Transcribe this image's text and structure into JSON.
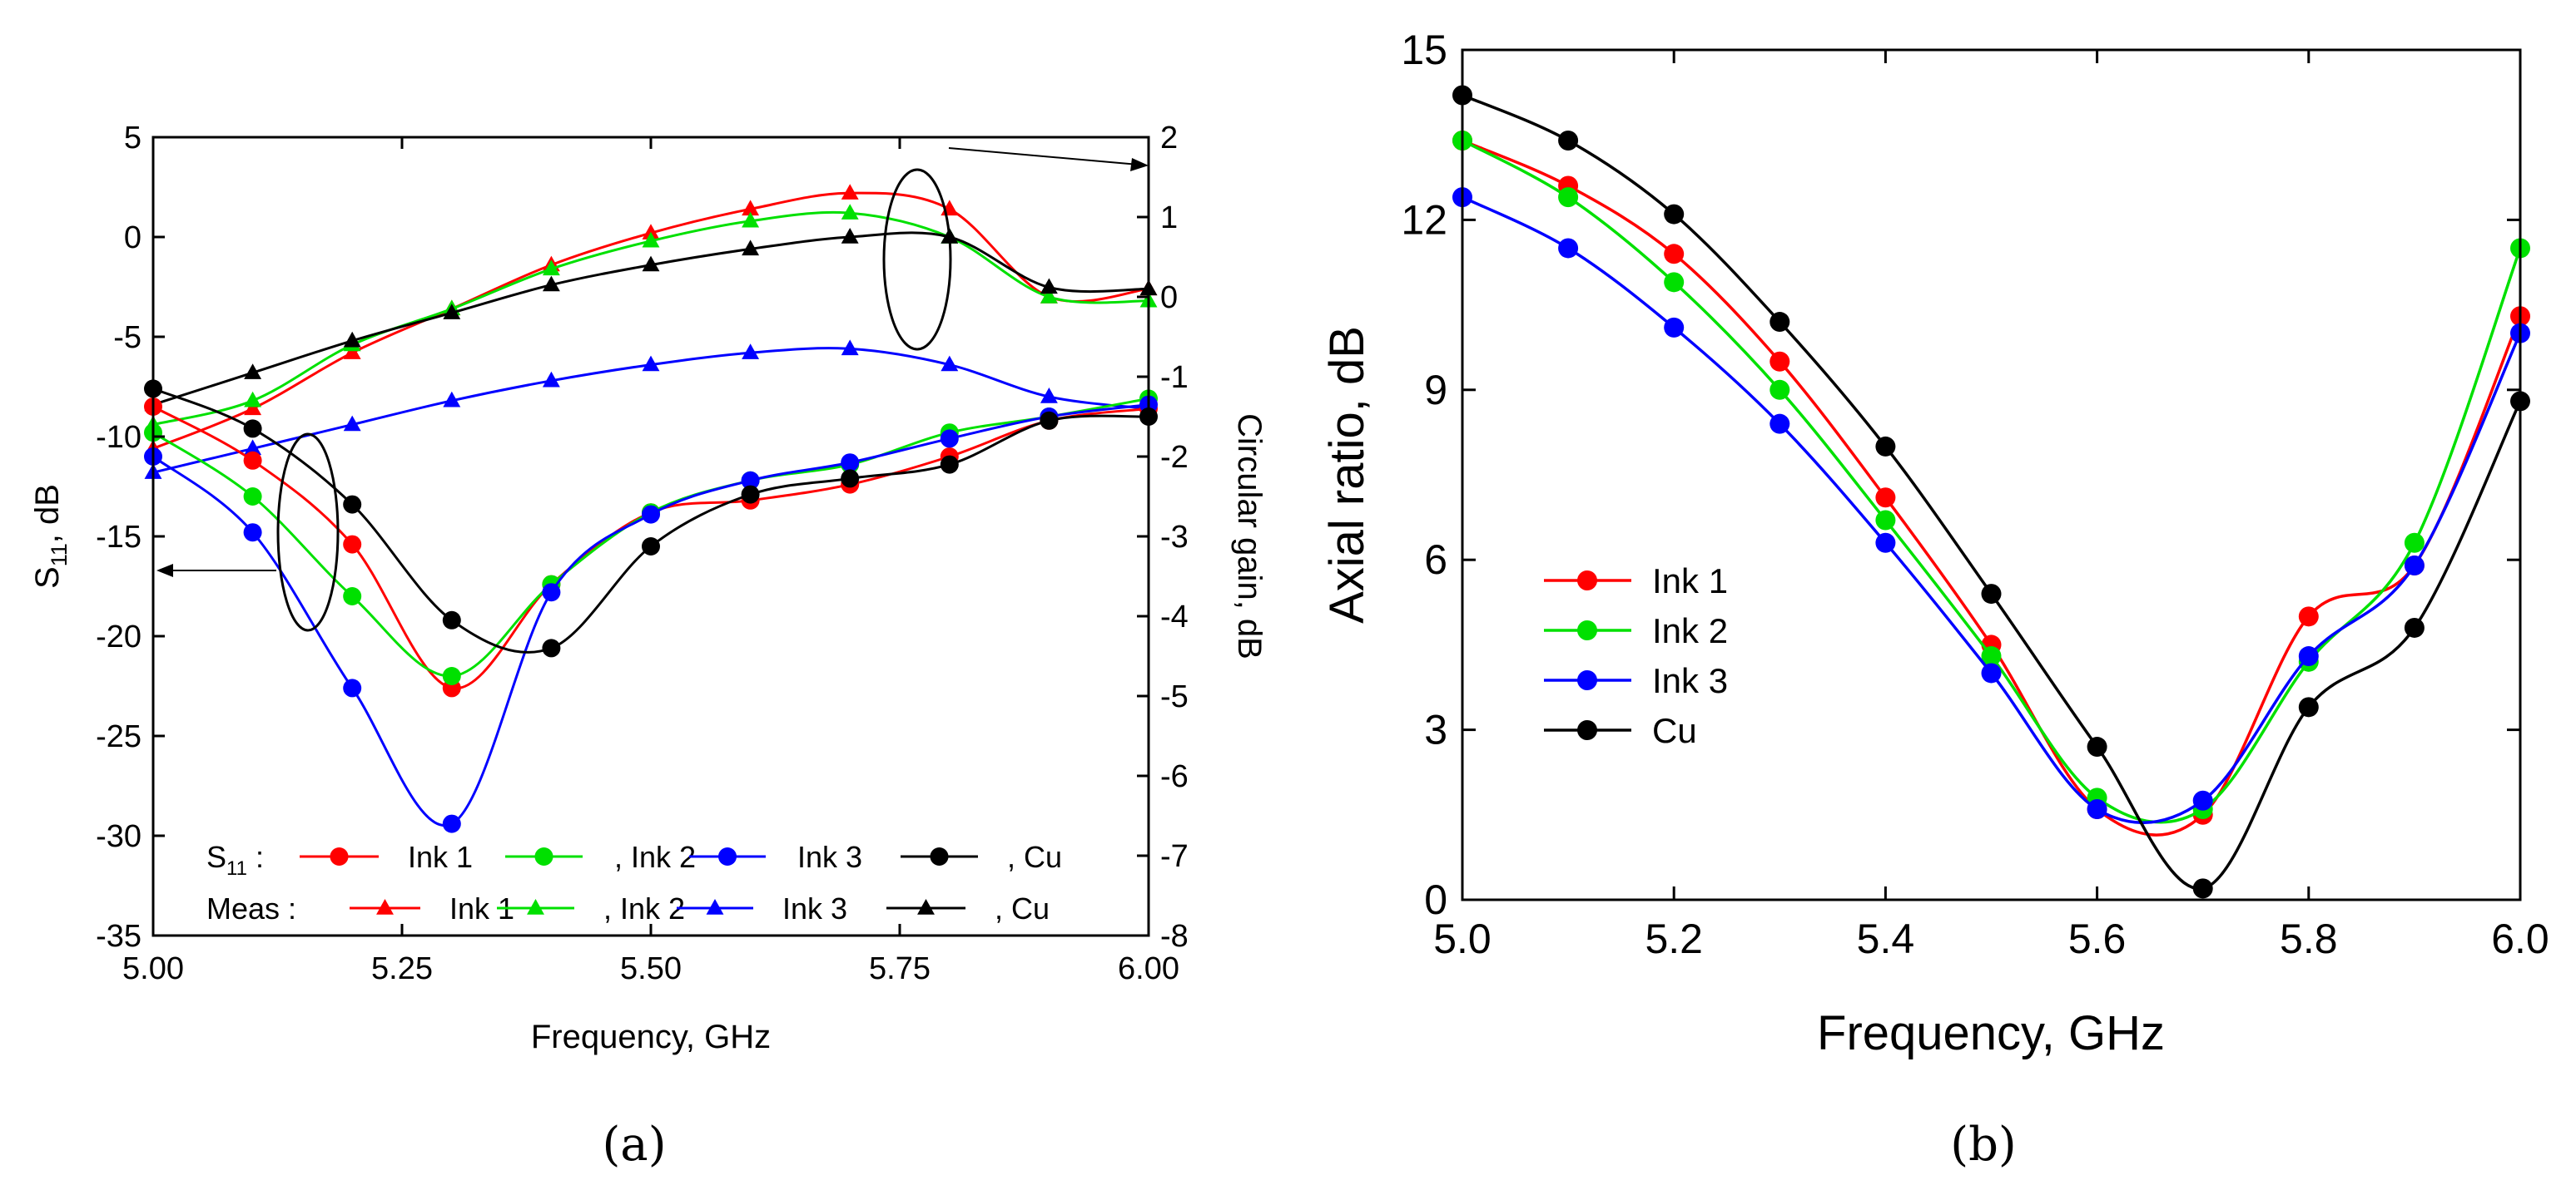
{
  "chart_data": [
    {
      "panel": "(a)",
      "type": "line",
      "xlabel": "Frequency, GHz",
      "ylabel": "S11, dB",
      "ylabel_main": "S",
      "ylabel_sub": "11",
      "ylabel_rest": ", dB",
      "y2label": "Circular gain, dB",
      "xlim": [
        5.0,
        6.0
      ],
      "ylim": [
        -35,
        5
      ],
      "y2lim": [
        -8,
        2
      ],
      "xticks": [
        "5.00",
        "5.25",
        "5.50",
        "5.75",
        "6.00"
      ],
      "xtick_values": [
        5.0,
        5.25,
        5.5,
        5.75,
        6.0
      ],
      "yticks": [
        "5",
        "0",
        "-5",
        "-10",
        "-15",
        "-20",
        "-25",
        "-30",
        "-35"
      ],
      "ytick_values": [
        5,
        0,
        -5,
        -10,
        -15,
        -20,
        -25,
        -30,
        -35
      ],
      "y2ticks": [
        "2",
        "1",
        "0",
        "-1",
        "-2",
        "-3",
        "-4",
        "-5",
        "-6",
        "-7",
        "-8"
      ],
      "y2tick_values": [
        2,
        1,
        0,
        -1,
        -2,
        -3,
        -4,
        -5,
        -6,
        -7,
        -8
      ],
      "x": [
        5.0,
        5.1,
        5.2,
        5.3,
        5.4,
        5.5,
        5.6,
        5.7,
        5.8,
        5.9,
        6.0
      ],
      "s11_series": [
        {
          "name": "Ink 1",
          "color": "#ff0000",
          "values": [
            -8.5,
            -11.2,
            -15.4,
            -22.6,
            -17.4,
            -13.8,
            -13.2,
            -12.4,
            -11.0,
            -9.2,
            -8.6
          ]
        },
        {
          "name": "Ink 2",
          "color": "#00e000",
          "values": [
            -9.8,
            -13.0,
            -18.0,
            -22.0,
            -17.4,
            -13.8,
            -12.2,
            -11.4,
            -9.8,
            -9.0,
            -8.1
          ]
        },
        {
          "name": "Ink 3",
          "color": "#0000ff",
          "values": [
            -11.0,
            -14.8,
            -22.6,
            -29.4,
            -17.8,
            -13.9,
            -12.2,
            -11.3,
            -10.1,
            -9.0,
            -8.4
          ]
        },
        {
          "name": "Cu",
          "color": "#000000",
          "values": [
            -7.6,
            -9.6,
            -13.4,
            -19.2,
            -20.6,
            -15.5,
            -12.9,
            -12.1,
            -11.4,
            -9.2,
            -9.0
          ]
        }
      ],
      "gain_series": [
        {
          "name": "Ink 1",
          "color": "#ff0000",
          "values": [
            -1.9,
            -1.4,
            -0.7,
            -0.15,
            0.4,
            0.8,
            1.1,
            1.3,
            1.1,
            0.0,
            0.1
          ]
        },
        {
          "name": "Ink 2",
          "color": "#00e000",
          "values": [
            -1.6,
            -1.3,
            -0.6,
            -0.15,
            0.35,
            0.7,
            0.95,
            1.05,
            0.75,
            0.0,
            -0.05
          ]
        },
        {
          "name": "Ink 3",
          "color": "#0000ff",
          "values": [
            -2.2,
            -1.9,
            -1.6,
            -1.3,
            -1.05,
            -0.85,
            -0.7,
            -0.65,
            -0.85,
            -1.25,
            -1.4
          ]
        },
        {
          "name": "Cu",
          "color": "#000000",
          "values": [
            -1.35,
            -0.95,
            -0.55,
            -0.2,
            0.15,
            0.4,
            0.6,
            0.75,
            0.75,
            0.12,
            0.1
          ]
        }
      ],
      "legend_s11_label": "S11 :",
      "legend_s11_main": "S",
      "legend_s11_sub": "11",
      "legend_s11_rest": " :",
      "legend_meas_label": "Meas :",
      "legend_entries": [
        "Ink 1",
        ",  Ink 2",
        "Ink 3",
        ", Cu"
      ],
      "legend_entries_meas": [
        "Ink 1",
        ",  Ink 2",
        "Ink 3",
        ", Cu"
      ]
    },
    {
      "panel": "(b)",
      "type": "line",
      "xlabel": "Frequency, GHz",
      "ylabel": "Axial ratio, dB",
      "xlim": [
        5.0,
        6.0
      ],
      "ylim": [
        0,
        15
      ],
      "xticks": [
        "5.0",
        "5.2",
        "5.4",
        "5.6",
        "5.8",
        "6.0"
      ],
      "xtick_values": [
        5.0,
        5.2,
        5.4,
        5.6,
        5.8,
        6.0
      ],
      "yticks": [
        "0",
        "3",
        "6",
        "9",
        "12",
        "15"
      ],
      "ytick_values": [
        0,
        3,
        6,
        9,
        12,
        15
      ],
      "x": [
        5.0,
        5.1,
        5.2,
        5.3,
        5.4,
        5.5,
        5.6,
        5.7,
        5.8,
        5.9,
        6.0
      ],
      "series": [
        {
          "name": "Ink 1",
          "color": "#ff0000",
          "values": [
            13.4,
            12.6,
            11.4,
            9.5,
            7.1,
            4.5,
            1.6,
            1.5,
            5.0,
            5.9,
            10.3
          ]
        },
        {
          "name": "Ink 2",
          "color": "#00e000",
          "values": [
            13.4,
            12.4,
            10.9,
            9.0,
            6.7,
            4.3,
            1.8,
            1.6,
            4.2,
            6.3,
            11.5
          ]
        },
        {
          "name": "Ink 3",
          "color": "#0000ff",
          "values": [
            12.4,
            11.5,
            10.1,
            8.4,
            6.3,
            4.0,
            1.6,
            1.75,
            4.3,
            5.9,
            10.0
          ]
        },
        {
          "name": "Cu",
          "color": "#000000",
          "values": [
            14.2,
            13.4,
            12.1,
            10.2,
            8.0,
            5.4,
            2.7,
            0.2,
            3.4,
            4.8,
            8.8
          ]
        }
      ],
      "legend": [
        "Ink 1",
        "Ink 2",
        "Ink 3",
        "Cu"
      ]
    }
  ],
  "captions": [
    "(a)",
    "(b)"
  ]
}
